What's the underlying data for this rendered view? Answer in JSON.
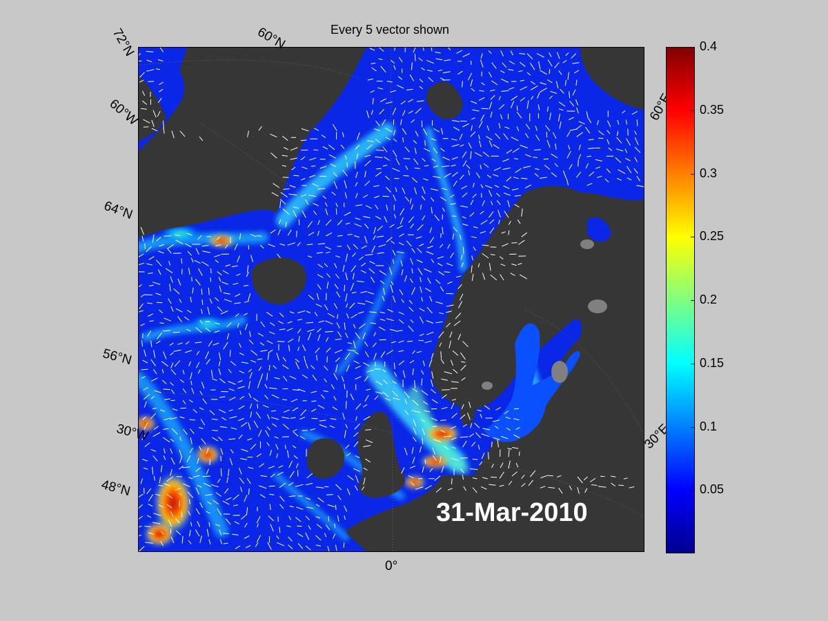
{
  "figure": {
    "title": "Every 5 vector shown",
    "date": "31-Mar-2010"
  },
  "map_labels": {
    "lat_72": "72°N",
    "lon_60w_top": "60°W",
    "lat_60_top": "60°N",
    "lat_64": "64°N",
    "lat_56": "56°N",
    "lon_30w": "30°W",
    "lat_48": "48°N",
    "lon_0": "0°",
    "lon_60e": "60°E",
    "lon_30e": "30°E"
  },
  "colorbar": {
    "colormap": "jet",
    "range": [
      0,
      0.4
    ],
    "ticks": [
      "0.4",
      "0.35",
      "0.3",
      "0.25",
      "0.2",
      "0.15",
      "0.1",
      "0.05"
    ]
  },
  "colors": {
    "background": "#c8c8c8",
    "land": "#363636",
    "ocean_low": "#0a26e6",
    "vectors": "#ffffff"
  }
}
